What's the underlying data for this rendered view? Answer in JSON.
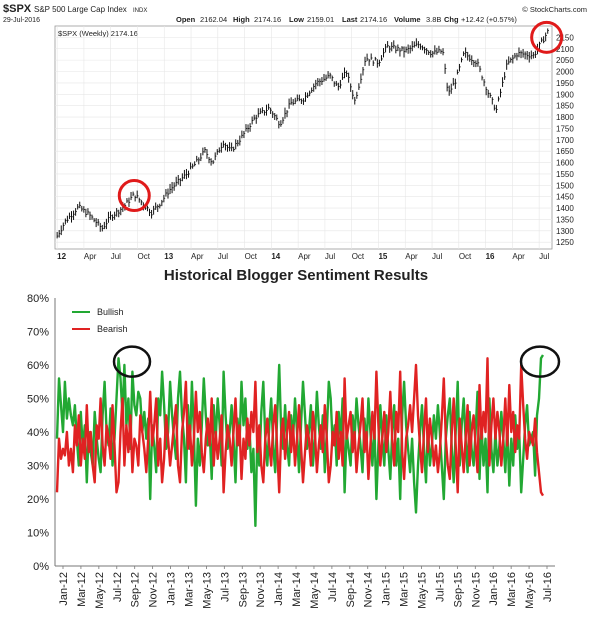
{
  "chart_data": [
    {
      "type": "line",
      "ticker": "$SPX",
      "title": "S&P 500 Large Cap Index",
      "exchange": "INDX",
      "date": "29-Jul-2016",
      "quote": {
        "open_label": "Open",
        "open": "2162.04",
        "high_label": "High",
        "high": "2174.16",
        "low_label": "Low",
        "low": "2159.01",
        "last_label": "Last",
        "last": "2174.16",
        "volume_label": "Volume",
        "volume": "3.8B",
        "chg_label": "Chg",
        "chg": "+12.42 (+0.57%)"
      },
      "source": "© StockCharts.com",
      "legend": "$SPX (Weekly) 2174.16",
      "y_ticks": [
        1250,
        1300,
        1350,
        1400,
        1450,
        1500,
        1550,
        1600,
        1650,
        1700,
        1750,
        1800,
        1850,
        1900,
        1950,
        2000,
        2050,
        2100,
        2150
      ],
      "ylim": [
        1220,
        2200
      ],
      "x_tick_labels": [
        "12",
        "Apr",
        "Jul",
        "Oct",
        "13",
        "Apr",
        "Jul",
        "Oct",
        "14",
        "Apr",
        "Jul",
        "Oct",
        "15",
        "Apr",
        "Jul",
        "Oct",
        "16",
        "Apr",
        "Jul"
      ],
      "x_tick_pos": [
        2012.0,
        2012.25,
        2012.5,
        2012.75,
        2013.0,
        2013.25,
        2013.5,
        2013.75,
        2014.0,
        2014.25,
        2014.5,
        2014.75,
        2015.0,
        2015.25,
        2015.5,
        2015.75,
        2016.0,
        2016.25,
        2016.5
      ],
      "xlim": [
        2011.98,
        2016.62
      ],
      "anchors": [
        [
          2012.0,
          1277
        ],
        [
          2012.08,
          1344
        ],
        [
          2012.2,
          1405
        ],
        [
          2012.3,
          1370
        ],
        [
          2012.42,
          1310
        ],
        [
          2012.5,
          1362
        ],
        [
          2012.62,
          1405
        ],
        [
          2012.72,
          1460
        ],
        [
          2012.8,
          1420
        ],
        [
          2012.88,
          1380
        ],
        [
          2012.96,
          1420
        ],
        [
          2013.05,
          1480
        ],
        [
          2013.2,
          1545
        ],
        [
          2013.3,
          1600
        ],
        [
          2013.38,
          1650
        ],
        [
          2013.45,
          1600
        ],
        [
          2013.55,
          1690
        ],
        [
          2013.62,
          1650
        ],
        [
          2013.72,
          1710
        ],
        [
          2013.85,
          1800
        ],
        [
          2013.98,
          1840
        ],
        [
          2014.08,
          1770
        ],
        [
          2014.18,
          1860
        ],
        [
          2014.3,
          1880
        ],
        [
          2014.42,
          1950
        ],
        [
          2014.55,
          1980
        ],
        [
          2014.62,
          1930
        ],
        [
          2014.7,
          2000
        ],
        [
          2014.78,
          1870
        ],
        [
          2014.88,
          2060
        ],
        [
          2015.0,
          2040
        ],
        [
          2015.08,
          2110
        ],
        [
          2015.25,
          2090
        ],
        [
          2015.38,
          2120
        ],
        [
          2015.5,
          2080
        ],
        [
          2015.6,
          2090
        ],
        [
          2015.65,
          1900
        ],
        [
          2015.72,
          1960
        ],
        [
          2015.8,
          2080
        ],
        [
          2015.92,
          2040
        ],
        [
          2016.03,
          1900
        ],
        [
          2016.1,
          1830
        ],
        [
          2016.2,
          2030
        ],
        [
          2016.3,
          2080
        ],
        [
          2016.45,
          2070
        ],
        [
          2016.5,
          2110
        ],
        [
          2016.58,
          2174
        ]
      ],
      "circle_labels": [
        "Sep-12 peak",
        "Jul-16 high"
      ]
    },
    {
      "type": "line",
      "title": "Historical Blogger Sentiment Results",
      "y_ticks": [
        "0%",
        "10%",
        "20%",
        "30%",
        "40%",
        "50%",
        "60%",
        "70%",
        "80%"
      ],
      "ylim": [
        0,
        80
      ],
      "x_ticks": [
        "Jan-12",
        "Mar-12",
        "May-12",
        "Jul-12",
        "Sep-12",
        "Nov-12",
        "Jan-13",
        "Mar-13",
        "May-13",
        "Jul-13",
        "Sep-13",
        "Nov-13",
        "Jan-14",
        "Mar-14",
        "May-14",
        "Jul-14",
        "Sep-14",
        "Nov-14",
        "Jan-15",
        "Mar-15",
        "May-15",
        "Jul-15",
        "Sep-15",
        "Nov-15",
        "Jan-16",
        "Mar-16",
        "May-16",
        "Jul-16"
      ],
      "series": [
        {
          "name": "Bullish",
          "color": "#22a833",
          "values": [
            38,
            56,
            48,
            40,
            55,
            44,
            50,
            45,
            42,
            48,
            38,
            30,
            46,
            35,
            42,
            25,
            40,
            34,
            30,
            46,
            38,
            32,
            28,
            45,
            55,
            40,
            36,
            47,
            30,
            38,
            50,
            62,
            56,
            45,
            60,
            42,
            50,
            35,
            58,
            48,
            45,
            52,
            50,
            40,
            46,
            38,
            44,
            20,
            42,
            36,
            28,
            50,
            45,
            58,
            48,
            35,
            40,
            55,
            45,
            38,
            32,
            50,
            58,
            45,
            38,
            25,
            48,
            35,
            55,
            40,
            18,
            38,
            30,
            42,
            56,
            45,
            36,
            40,
            26,
            48,
            38,
            50,
            42,
            30,
            58,
            45,
            35,
            40,
            48,
            38,
            25,
            44,
            36,
            55,
            42,
            50,
            35,
            42,
            28,
            35,
            12,
            40,
            30,
            46,
            55,
            38,
            30,
            42,
            50,
            36,
            28,
            45,
            60,
            40,
            35,
            48,
            36,
            30,
            45,
            38,
            50,
            40,
            28,
            42,
            55,
            45,
            35,
            40,
            48,
            30,
            38,
            52,
            42,
            35,
            45,
            28,
            40,
            55,
            50,
            36,
            42,
            30,
            46,
            38,
            50,
            22,
            40,
            35,
            30,
            45,
            38,
            50,
            42,
            36,
            28,
            44,
            35,
            50,
            40,
            30,
            42,
            20,
            36,
            48,
            38,
            30,
            45,
            35,
            26,
            40,
            48,
            30,
            38,
            20,
            45,
            55,
            42,
            35,
            28,
            38,
            25,
            16,
            30,
            40,
            48,
            35,
            25,
            42,
            30,
            36,
            45,
            38,
            48,
            40,
            30,
            20,
            38,
            45,
            50,
            35,
            25,
            40,
            55,
            30,
            42,
            50,
            38,
            28,
            46,
            35,
            30,
            40,
            52,
            26,
            42,
            30,
            38,
            22,
            50,
            35,
            28,
            40,
            30,
            36,
            46,
            38,
            28,
            42,
            24,
            38,
            30,
            45,
            35,
            40,
            22,
            32,
            42,
            48,
            36,
            38,
            40,
            27,
            45,
            50,
            62,
            63
          ]
        },
        {
          "name": "Bearish",
          "color": "#e02222",
          "values": [
            22,
            38,
            32,
            35,
            33,
            40,
            30,
            35,
            28,
            42,
            36,
            45,
            30,
            38,
            32,
            48,
            34,
            40,
            30,
            25,
            42,
            38,
            50,
            36,
            30,
            42,
            38,
            32,
            48,
            36,
            22,
            25,
            40,
            50,
            30,
            42,
            34,
            45,
            28,
            38,
            36,
            30,
            45,
            40,
            35,
            28,
            38,
            52,
            36,
            42,
            50,
            30,
            38,
            25,
            32,
            45,
            38,
            30,
            36,
            42,
            48,
            30,
            25,
            40,
            46,
            55,
            35,
            42,
            30,
            38,
            52,
            40,
            46,
            34,
            28,
            38,
            44,
            36,
            50,
            30,
            40,
            32,
            38,
            45,
            22,
            34,
            42,
            38,
            30,
            40,
            50,
            36,
            42,
            26,
            38,
            32,
            44,
            36,
            46,
            40,
            55,
            34,
            42,
            30,
            25,
            38,
            44,
            36,
            30,
            42,
            48,
            35,
            22,
            40,
            44,
            32,
            40,
            46,
            34,
            42,
            30,
            38,
            48,
            36,
            25,
            34,
            42,
            38,
            30,
            46,
            40,
            28,
            36,
            42,
            34,
            48,
            38,
            25,
            30,
            40,
            36,
            46,
            32,
            40,
            30,
            56,
            38,
            42,
            46,
            34,
            40,
            28,
            36,
            42,
            50,
            34,
            40,
            26,
            36,
            46,
            38,
            58,
            42,
            30,
            38,
            46,
            34,
            40,
            52,
            38,
            30,
            46,
            40,
            58,
            34,
            26,
            38,
            42,
            48,
            40,
            50,
            60,
            45,
            36,
            28,
            40,
            50,
            34,
            44,
            38,
            30,
            36,
            28,
            34,
            44,
            56,
            38,
            30,
            26,
            40,
            50,
            36,
            22,
            44,
            36,
            28,
            38,
            48,
            30,
            40,
            45,
            36,
            28,
            54,
            38,
            46,
            40,
            62,
            30,
            42,
            50,
            38,
            46,
            40,
            30,
            38,
            50,
            36,
            54,
            40,
            46,
            34,
            42,
            38,
            60,
            48,
            38,
            32,
            40,
            38,
            36,
            44,
            34,
            28,
            22,
            21
          ]
        }
      ],
      "circle_labels": [
        "Sep-12 bullish spike",
        "Jul-16 bullish spike"
      ]
    }
  ]
}
